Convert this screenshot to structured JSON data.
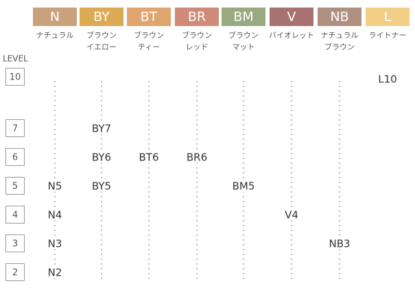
{
  "header": {
    "level_title": "LEVEL"
  },
  "columns": [
    {
      "code": "N",
      "color": "#c9a27c",
      "name": [
        "ナチュラル"
      ]
    },
    {
      "code": "BY",
      "color": "#dcaa55",
      "name": [
        "ブラウン",
        "イエロー"
      ]
    },
    {
      "code": "BT",
      "color": "#e0a56e",
      "name": [
        "ブラウン",
        "ティー"
      ]
    },
    {
      "code": "BR",
      "color": "#cf8a78",
      "name": [
        "ブラウン",
        "レッド"
      ]
    },
    {
      "code": "BM",
      "color": "#9aaa80",
      "name": [
        "ブラウン",
        "マット"
      ]
    },
    {
      "code": "V",
      "color": "#a87272",
      "name": [
        "バイオレット"
      ]
    },
    {
      "code": "NB",
      "color": "#b09080",
      "name": [
        "ナチュラル",
        "ブラウン"
      ]
    },
    {
      "code": "L",
      "color": "#f2cf85",
      "name": [
        "ライトナー"
      ]
    }
  ],
  "rows": [
    {
      "level": "10",
      "cells": [
        null,
        null,
        null,
        null,
        null,
        null,
        null,
        "L10"
      ]
    },
    {
      "level": "7",
      "cells": [
        null,
        "BY7",
        null,
        null,
        null,
        null,
        null,
        null
      ]
    },
    {
      "level": "6",
      "cells": [
        null,
        "BY6",
        "BT6",
        "BR6",
        null,
        null,
        null,
        null
      ]
    },
    {
      "level": "5",
      "cells": [
        "N5",
        "BY5",
        null,
        null,
        "BM5",
        null,
        null,
        null
      ]
    },
    {
      "level": "4",
      "cells": [
        "N4",
        null,
        null,
        null,
        null,
        "V4",
        null,
        null
      ]
    },
    {
      "level": "3",
      "cells": [
        "N3",
        null,
        null,
        null,
        null,
        null,
        "NB3",
        null
      ]
    },
    {
      "level": "2",
      "cells": [
        "N2",
        null,
        null,
        null,
        null,
        null,
        null,
        null
      ]
    }
  ]
}
